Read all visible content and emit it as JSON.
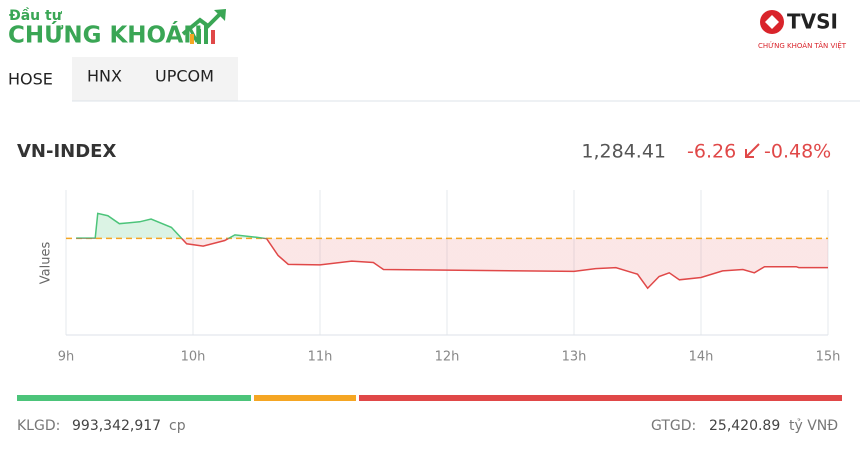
{
  "header": {
    "brand_small": "Đầu tư",
    "brand_large": "CHỨNG KHOÁN",
    "partner": "TVSI",
    "partner_tagline": "CHỨNG KHOÁN TÂN VIỆT"
  },
  "tabs": [
    "HOSE",
    "HNX",
    "UPCOM"
  ],
  "index": {
    "name": "VN-INDEX",
    "price": {
      "value": 1284.41,
      "label": "1,284.41"
    },
    "change": -6.26,
    "change_percent": "-0.48%"
  },
  "chart_data": {
    "type": "line",
    "y_label": "Values",
    "xlim": [
      9,
      15
    ],
    "xticks": [
      {
        "value": 9,
        "label": "9h"
      },
      {
        "value": 10,
        "label": "10h"
      },
      {
        "value": 11,
        "label": "11h"
      },
      {
        "value": 12,
        "label": "12h"
      },
      {
        "value": 13,
        "label": "13h"
      },
      {
        "value": 14,
        "label": "14h"
      },
      {
        "value": 15,
        "label": "15h"
      }
    ],
    "ylim": [
      1270,
      1301
    ],
    "grid": true,
    "x": [
      9.08,
      9.23,
      9.25,
      9.33,
      9.42,
      9.58,
      9.67,
      9.83,
      9.95,
      10.08,
      10.25,
      10.33,
      10.5,
      10.58,
      10.67,
      10.75,
      11.0,
      11.25,
      11.42,
      11.5,
      13.0,
      13.17,
      13.33,
      13.5,
      13.58,
      13.67,
      13.75,
      13.83,
      14.0,
      14.17,
      14.33,
      14.42,
      14.5,
      14.75,
      14.77,
      15.0
    ],
    "series": [
      {
        "name": "VN-INDEX",
        "color": "#e04848",
        "up_color": "#4cc47a",
        "values": [
          1290.7,
          1290.7,
          1296.0,
          1295.5,
          1293.8,
          1294.2,
          1294.8,
          1293.0,
          1289.5,
          1289.0,
          1290.2,
          1291.4,
          1290.9,
          1290.6,
          1287.0,
          1285.1,
          1285.0,
          1285.8,
          1285.5,
          1284.0,
          1283.6,
          1284.2,
          1284.4,
          1283.0,
          1280.0,
          1282.5,
          1283.3,
          1281.8,
          1282.3,
          1283.7,
          1284.0,
          1283.3,
          1284.6,
          1284.6,
          1284.41,
          1284.41
        ]
      }
    ]
  },
  "footer": {
    "volume_label": "KLGD:",
    "volume": "993,342,917",
    "volume_unit": "cp",
    "value_label": "GTGD:",
    "value": "25,420.89",
    "value_unit": "tỷ VNĐ"
  }
}
